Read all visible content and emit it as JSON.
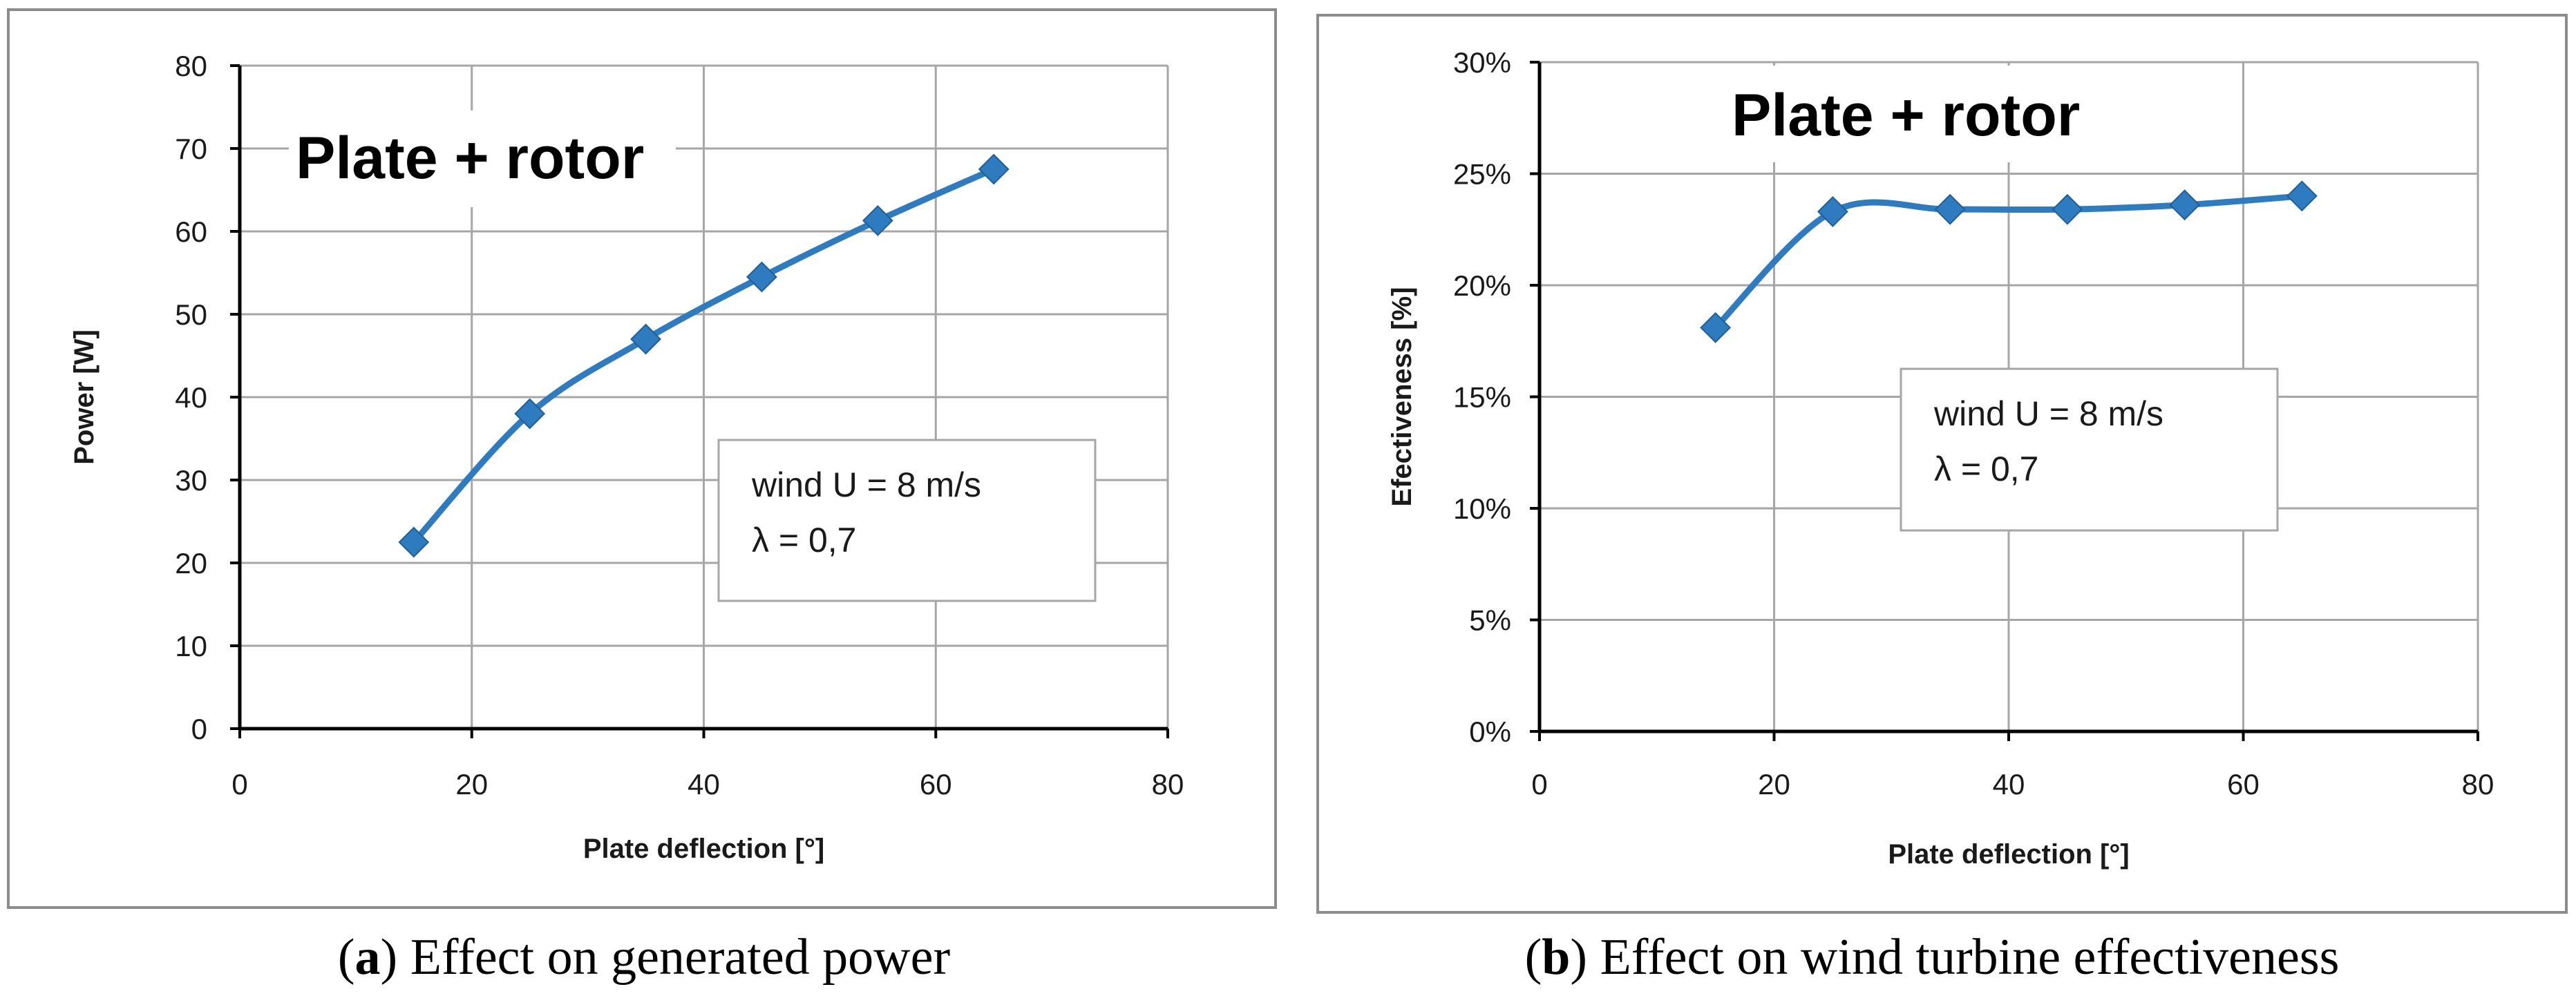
{
  "chart_data": [
    {
      "type": "line",
      "panel": "a",
      "title": "Plate + rotor",
      "xlabel": "Plate deflection [°]",
      "ylabel": "Power  [W]",
      "xlim": [
        0,
        80
      ],
      "ylim": [
        0,
        80
      ],
      "xticks": [
        "0",
        "20",
        "40",
        "60",
        "80"
      ],
      "yticks": [
        "0",
        "10",
        "20",
        "30",
        "40",
        "50",
        "60",
        "70",
        "80"
      ],
      "x": [
        15,
        25,
        35,
        45,
        55,
        65
      ],
      "y": [
        22.5,
        38,
        47,
        54.5,
        61.3,
        67.5
      ],
      "annotation": {
        "line1": "wind U = 8 m/s",
        "line2": "λ = 0,7"
      },
      "caption": {
        "label": "(a)",
        "letter": "a",
        "text": " Effect on generated power"
      },
      "grid": true
    },
    {
      "type": "line",
      "panel": "b",
      "title": "Plate + rotor",
      "xlabel": "Plate deflection [°]",
      "ylabel": "Efectiveness [%]",
      "xlim": [
        0,
        80
      ],
      "ylim": [
        0,
        30
      ],
      "xticks": [
        "0",
        "20",
        "40",
        "60",
        "80"
      ],
      "yticks": [
        "0%",
        "5%",
        "10%",
        "15%",
        "20%",
        "25%",
        "30%"
      ],
      "x": [
        15,
        25,
        35,
        45,
        55,
        65
      ],
      "y": [
        18.1,
        23.3,
        23.4,
        23.4,
        23.6,
        24.0
      ],
      "annotation": {
        "line1": "wind U = 8 m/s",
        "line2": "λ = 0,7"
      },
      "caption": {
        "label": "(b)",
        "letter": "b",
        "text": " Effect on wind turbine effectiveness"
      },
      "grid": true
    }
  ],
  "colors": {
    "series": "#2e7cbf",
    "grid": "#a6a6a6",
    "axis": "#000000",
    "frame": "#8c8c8c"
  }
}
